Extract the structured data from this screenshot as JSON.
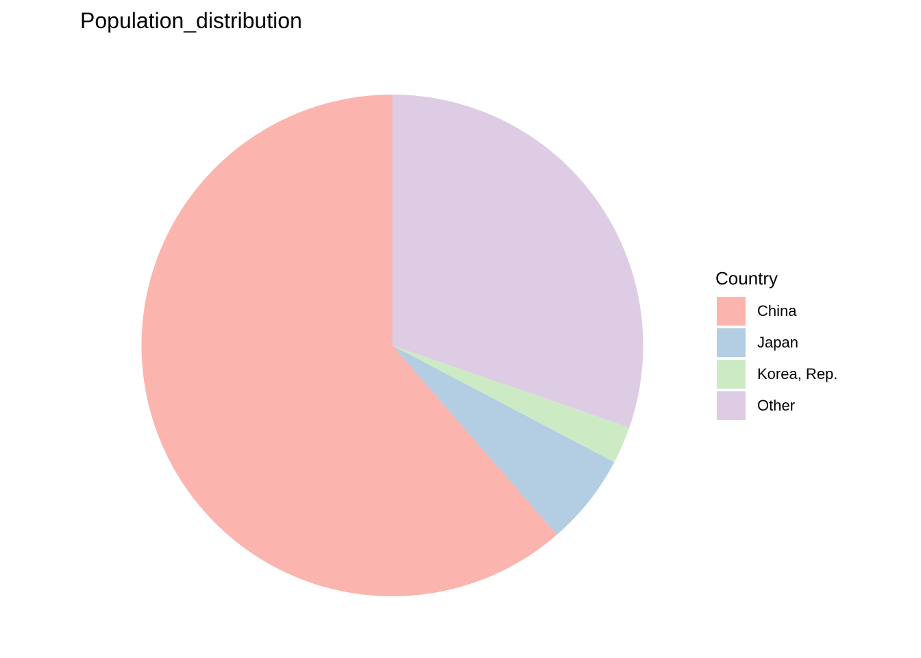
{
  "chart_data": {
    "type": "pie",
    "title": "Population_distribution",
    "legend": {
      "title": "Country",
      "placement": "right"
    },
    "categories": [
      "China",
      "Japan",
      "Korea, Rep.",
      "Other"
    ],
    "values": [
      61.4,
      5.9,
      2.4,
      30.3
    ],
    "colors": [
      "#FBB4AE",
      "#B3CDE3",
      "#CCEBC5",
      "#DECBE4"
    ],
    "start_angle": "12 o'clock",
    "direction": "counterclockwise"
  }
}
